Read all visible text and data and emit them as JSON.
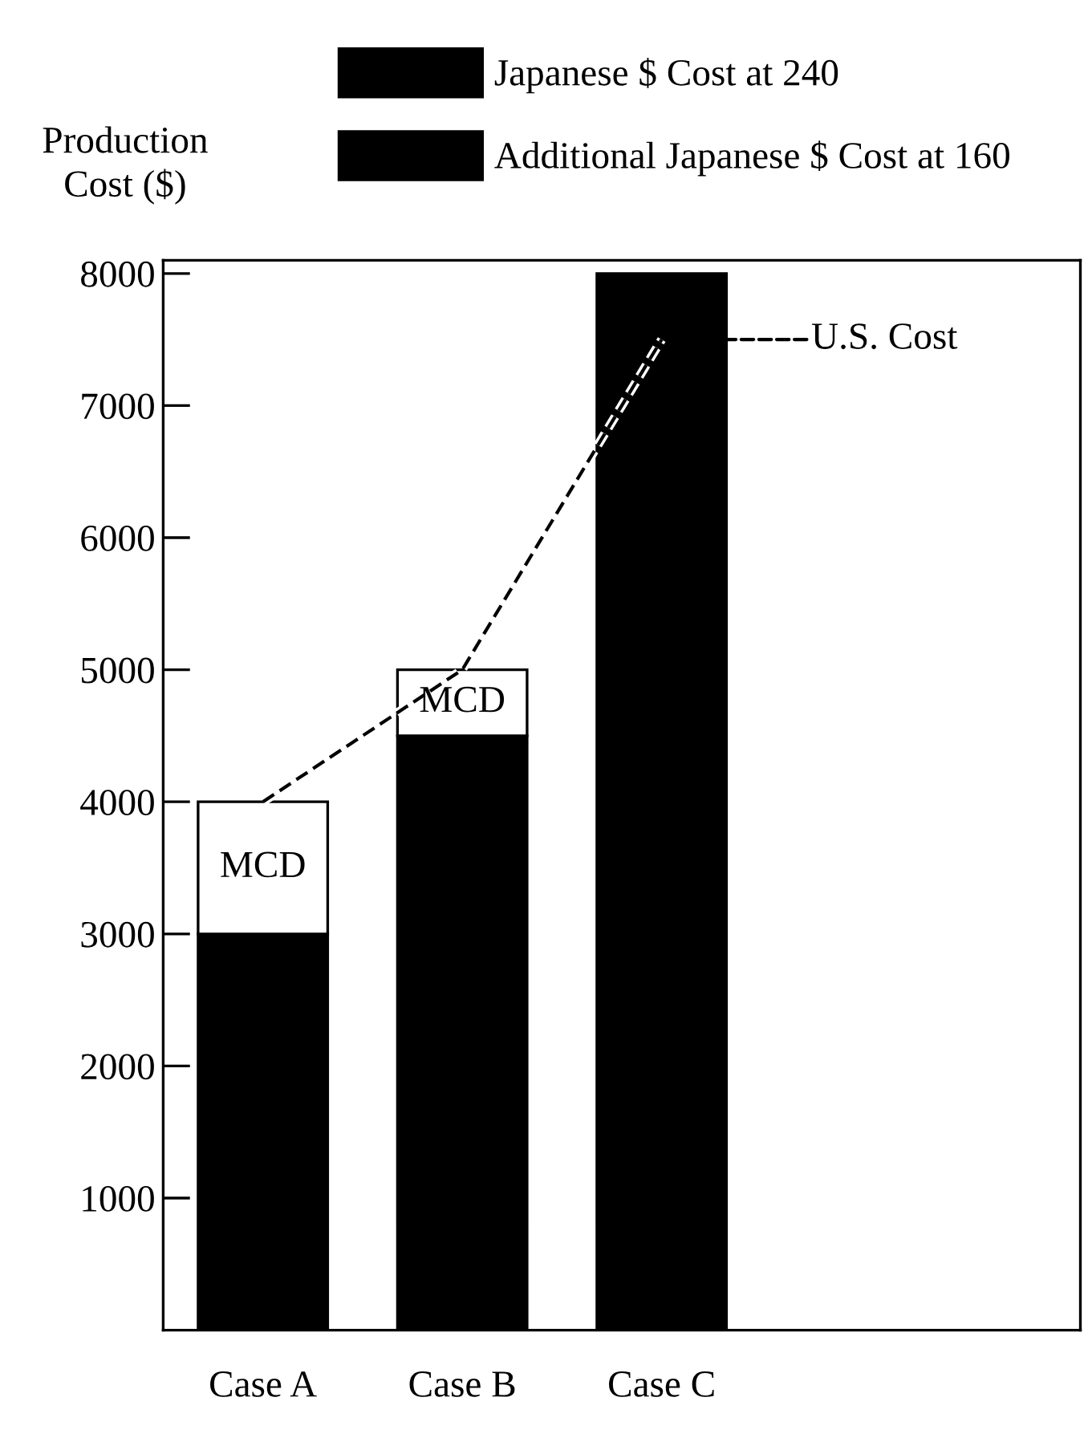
{
  "chart_data": {
    "type": "bar",
    "stacked": true,
    "ylabel": "Production\nCost ($)",
    "categories": [
      "Case A",
      "Case B",
      "Case C"
    ],
    "series": [
      {
        "name": "Japanese $ Cost at 240",
        "color": "#000000",
        "values": [
          3000,
          4500,
          8000
        ]
      },
      {
        "name": "Additional Japanese $ Cost at 160",
        "color": "#000000",
        "values": [
          null,
          null,
          null
        ]
      },
      {
        "color": "#ffffff",
        "values": [
          1000,
          500,
          null
        ]
      },
      {
        "name": "U.S. Cost",
        "type": "line",
        "color": "#000000",
        "line_style": "dashed",
        "marker": "none",
        "values": [
          4000,
          5000,
          7500
        ]
      }
    ],
    "annotations": [
      "MCD",
      "MCD"
    ],
    "ylim": [
      0,
      8100
    ],
    "yticks": [
      1000,
      2000,
      3000,
      4000,
      5000,
      6000,
      7000,
      8000
    ],
    "grid": false,
    "legend": "top"
  }
}
